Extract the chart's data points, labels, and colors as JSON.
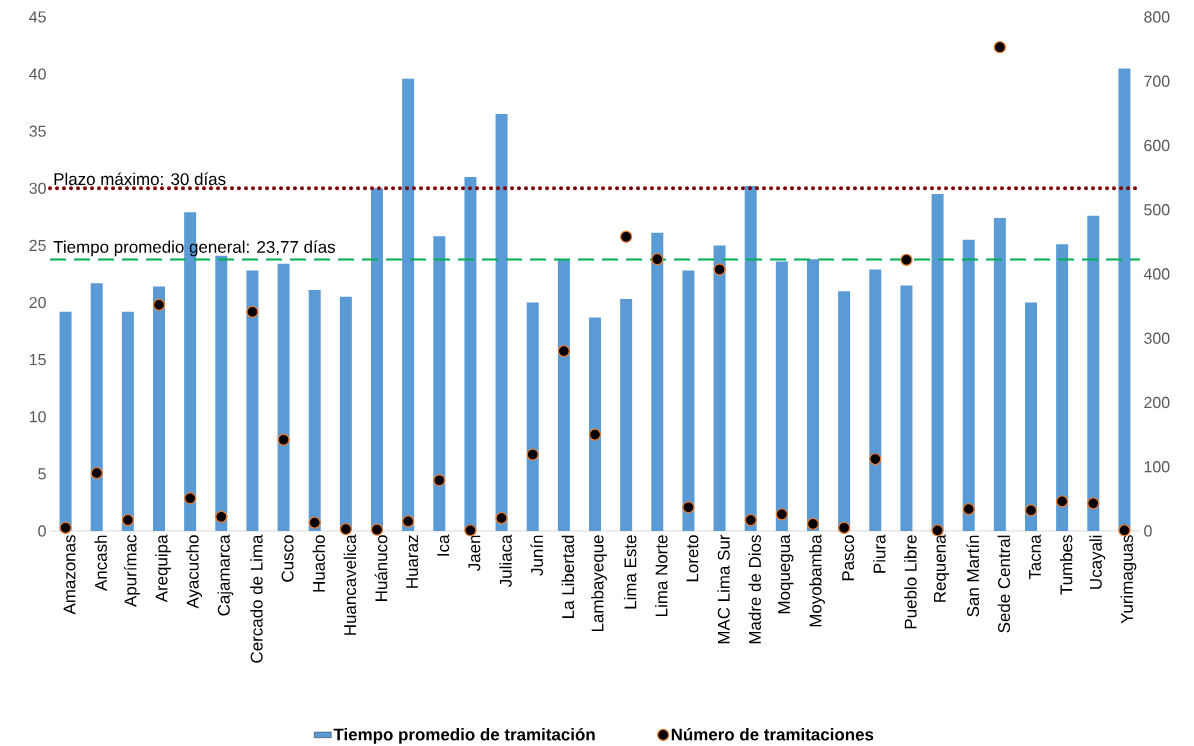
{
  "chart_data": {
    "type": "bar",
    "categories": [
      "Amazonas",
      "Ancash",
      "Apurímac",
      "Arequipa",
      "Ayacucho",
      "Cajamarca",
      "Cercado de Lima",
      "Cusco",
      "Huacho",
      "Huancavelica",
      "Huánuco",
      "Huaraz",
      "Ica",
      "Jaen",
      "Juliaca",
      "Junín",
      "La Libertad",
      "Lambayeque",
      "Lima Este",
      "Lima Norte",
      "Loreto",
      "MAC Lima Sur",
      "Madre de Dios",
      "Moquegua",
      "Moyobamba",
      "Pasco",
      "Piura",
      "Pueblo Libre",
      "Requena",
      "San Martín",
      "Sede Central",
      "Tacna",
      "Tumbes",
      "Ucayali",
      "Yurimaguas"
    ],
    "series": [
      {
        "name": "Tiempo promedio de tramitación",
        "color": "#5b9bd5",
        "values": [
          19.2,
          21.7,
          19.2,
          21.4,
          27.9,
          24.1,
          22.8,
          23.4,
          21.1,
          20.5,
          30.0,
          39.6,
          25.8,
          31.0,
          36.5,
          20.0,
          23.8,
          18.7,
          20.3,
          26.1,
          22.8,
          25.0,
          30.2,
          23.6,
          23.8,
          21.0,
          22.9,
          21.5,
          29.5,
          25.5,
          27.4,
          20.0,
          25.1,
          27.6,
          40.5
        ]
      },
      {
        "name": "Número de tramitaciones",
        "type": "scatter",
        "axis": "y2",
        "marker": "circle",
        "color": "#000000",
        "values": [
          5,
          90,
          17,
          352,
          51,
          22,
          341,
          142,
          13,
          3,
          2,
          15,
          79,
          1,
          20,
          119,
          280,
          150,
          458,
          423,
          37,
          407,
          17,
          26,
          11,
          5,
          112,
          422,
          1,
          34,
          753,
          32,
          46,
          43,
          1
        ]
      }
    ],
    "ylim": [
      0,
      45
    ],
    "yticks": [
      0,
      5,
      10,
      15,
      20,
      25,
      30,
      35,
      40,
      45
    ],
    "y2lim": [
      0,
      800
    ],
    "y2ticks": [
      0,
      100,
      200,
      300,
      400,
      500,
      600,
      700,
      800
    ],
    "ref_lines": [
      {
        "axis": "y",
        "value": 30,
        "label": "Plazo máximo: 30 días",
        "color": "#800000",
        "line_style": "dotted"
      },
      {
        "axis": "y",
        "value": 23.77,
        "label": "Tiempo promedio general: 23,77 días",
        "color": "#00b050",
        "line_style": "dashed"
      }
    ],
    "legend": "bottom",
    "grid": false
  }
}
